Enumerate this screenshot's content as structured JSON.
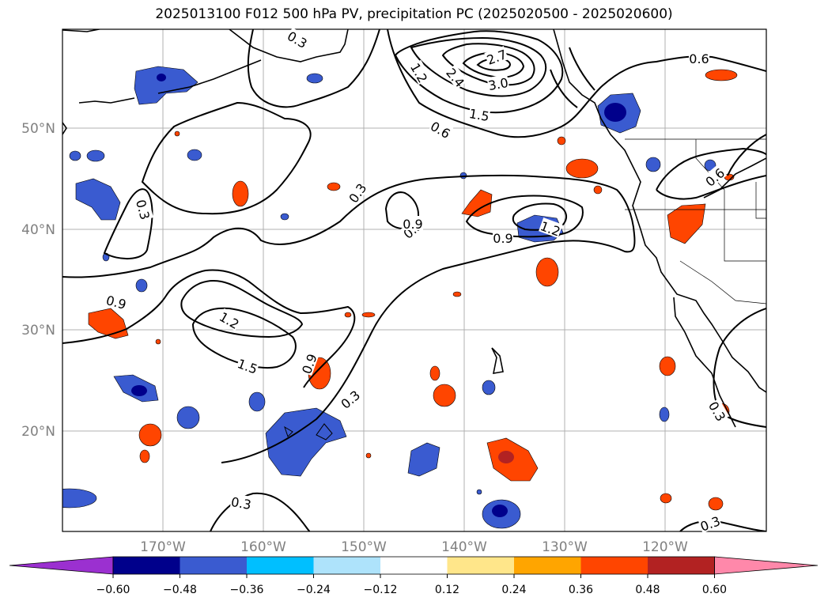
{
  "title": "2025013100 F012 500 hPa PV, precipitation PC (2025020500 - 2025020600)",
  "lat_labels": [
    "50°N",
    "40°N",
    "30°N",
    "20°N"
  ],
  "lon_labels": [
    "170°W",
    "160°W",
    "150°W",
    "140°W",
    "130°W",
    "120°W"
  ],
  "colorbar": {
    "ticks": [
      "−0.60",
      "−0.48",
      "−0.36",
      "−0.24",
      "−0.12",
      "0.12",
      "0.24",
      "0.36",
      "0.48",
      "0.60"
    ],
    "colors": [
      "#9b30d0",
      "#00008b",
      "#3a5bd0",
      "#00bfff",
      "#aee3fb",
      "#ffffff",
      "#ffe68a",
      "#ffa500",
      "#ff4500",
      "#b22222",
      "#ff88aa"
    ]
  },
  "contour_labels": [
    "0.3",
    "0.3",
    "0.3",
    "0.3",
    "0.3",
    "0.3",
    "0.3",
    "0.3",
    "0.6",
    "0.6",
    "0.6",
    "0.9",
    "0.9",
    "0.9",
    "0.9",
    "1.2",
    "1.2",
    "1.2",
    "1.5",
    "1.5",
    "2.4",
    "2.7",
    "3.0"
  ],
  "colors": {
    "grid": "#b0b0b0",
    "coast": "#000000",
    "contour": "#000000"
  }
}
